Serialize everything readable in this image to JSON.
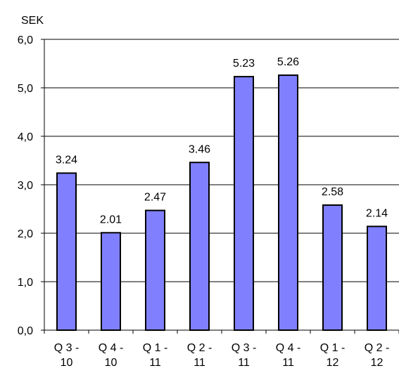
{
  "chart_data": {
    "type": "bar",
    "y_label": "SEK",
    "categories": [
      [
        "Q 3 -",
        "10"
      ],
      [
        "Q 4 -",
        "10"
      ],
      [
        "Q 1 -",
        "11"
      ],
      [
        "Q 2 -",
        "11"
      ],
      [
        "Q 3 -",
        "11"
      ],
      [
        "Q 4 -",
        "11"
      ],
      [
        "Q 1 -",
        "12"
      ],
      [
        "Q 2 -",
        "12"
      ]
    ],
    "values": [
      3.24,
      2.01,
      2.47,
      3.46,
      5.23,
      5.26,
      2.58,
      2.14
    ],
    "color": "#8080ff",
    "ylim": [
      0,
      6
    ],
    "yticks": [
      {
        "value": 0,
        "label": "0,0"
      },
      {
        "value": 1,
        "label": "1,0"
      },
      {
        "value": 2,
        "label": "2,0"
      },
      {
        "value": 3,
        "label": "3,0"
      },
      {
        "value": 4,
        "label": "4,0"
      },
      {
        "value": 5,
        "label": "5,0"
      },
      {
        "value": 6,
        "label": "6,0"
      }
    ],
    "grid": true
  }
}
